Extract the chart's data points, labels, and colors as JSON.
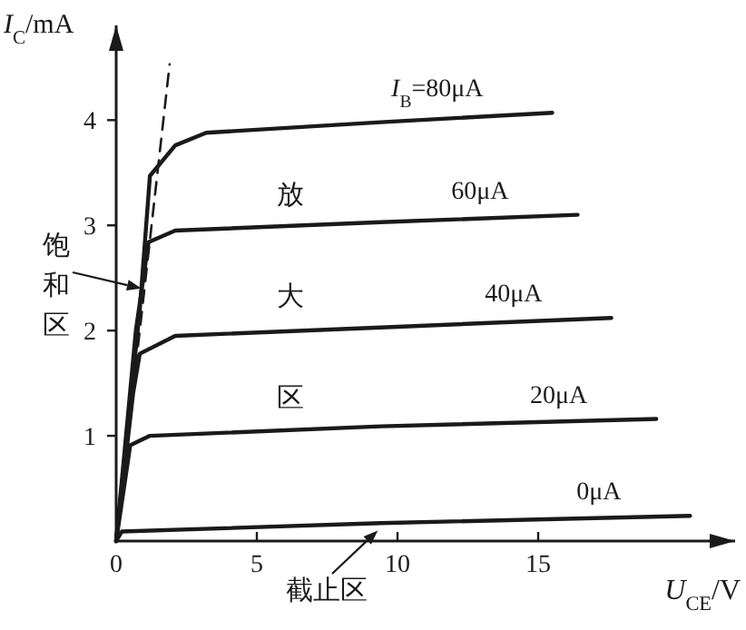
{
  "chart_data": {
    "type": "line",
    "xlabel": "*U*$_{CE}$/V",
    "ylabel": "*I*$_{C}$/mA",
    "xlim": [
      0,
      22
    ],
    "ylim": [
      0,
      4.9
    ],
    "xticks": [
      0,
      5,
      10,
      15
    ],
    "yticks": [
      1,
      2,
      3,
      4
    ],
    "grid": false,
    "marker": "none",
    "line_style": "solid",
    "series": [
      {
        "name": "*I*$_{B}$=80μA",
        "color": "#1a1a1a",
        "x": [
          0,
          0.84,
          1.2,
          2.1,
          3.2,
          9.4,
          15.5
        ],
        "values": [
          0,
          2.2,
          3.47,
          3.76,
          3.88,
          3.98,
          4.07
        ]
      },
      {
        "name": "60μA",
        "color": "#1a1a1a",
        "x": [
          0,
          0.7,
          1.15,
          2.1,
          9.4,
          16.4
        ],
        "values": [
          0,
          2.0,
          2.84,
          2.95,
          3.03,
          3.1
        ]
      },
      {
        "name": "40μA",
        "color": "#1a1a1a",
        "x": [
          0,
          0.6,
          0.84,
          2.1,
          9.4,
          17.6
        ],
        "values": [
          0,
          1.4,
          1.78,
          1.95,
          2.03,
          2.12
        ]
      },
      {
        "name": "20μA",
        "color": "#1a1a1a",
        "x": [
          0,
          0.5,
          1.2,
          9.4,
          19.2
        ],
        "values": [
          0,
          0.91,
          1.0,
          1.09,
          1.16
        ]
      },
      {
        "name": "0μA",
        "color": "#1a1a1a",
        "x": [
          0,
          0.2,
          9.4,
          20.4
        ],
        "values": [
          0,
          0.09,
          0.17,
          0.24
        ]
      },
      {
        "color": "#1a1a1a",
        "line_style": "dashed",
        "x": [
          0,
          1.9
        ],
        "values": [
          0,
          4.53
        ]
      }
    ],
    "annotations": [
      "放",
      "大",
      "区",
      {
        "text": "饱和区",
        "x": 0.9,
        "y": 2.4
      },
      {
        "text": "截止区",
        "x": 9.3,
        "y": 0.1
      }
    ]
  }
}
